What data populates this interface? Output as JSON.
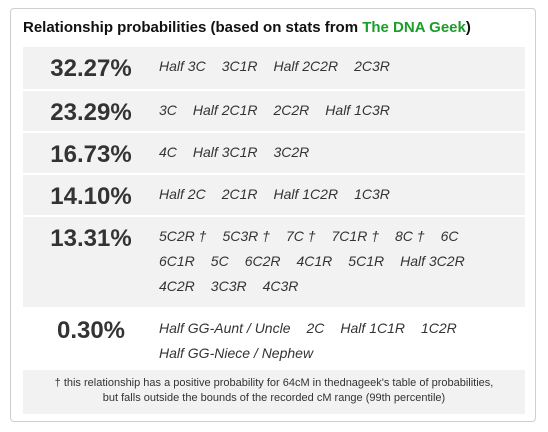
{
  "header": {
    "title_prefix": "Relationship probabilities (based on stats from ",
    "source_link": "The DNA Geek",
    "title_suffix": ")"
  },
  "rows": [
    {
      "percent": "32.27%",
      "relationships": [
        "Half 3C",
        "3C1R",
        "Half 2C2R",
        "2C3R"
      ]
    },
    {
      "percent": "23.29%",
      "relationships": [
        "3C",
        "Half 2C1R",
        "2C2R",
        "Half 1C3R"
      ]
    },
    {
      "percent": "16.73%",
      "relationships": [
        "4C",
        "Half 3C1R",
        "3C2R"
      ]
    },
    {
      "percent": "14.10%",
      "relationships": [
        "Half 2C",
        "2C1R",
        "Half 1C2R",
        "1C3R"
      ]
    },
    {
      "percent": "13.31%",
      "relationships": [
        "5C2R †",
        "5C3R †",
        "7C †",
        "7C1R †",
        "8C †",
        "6C",
        "6C1R",
        "5C",
        "6C2R",
        "4C1R",
        "5C1R",
        "Half 3C2R",
        "4C2R",
        "3C3R",
        "4C3R"
      ]
    },
    {
      "percent": "0.30%",
      "relationships": [
        "Half GG-Aunt / Uncle",
        "2C",
        "Half 1C1R",
        "1C2R",
        "Half GG-Niece / Nephew"
      ]
    }
  ],
  "footnote": {
    "line1": "† this relationship has a positive probability for 64cM in thednageek's table of probabilities,",
    "line2": "but falls outside the bounds of the recorded cM range (99th percentile)"
  }
}
